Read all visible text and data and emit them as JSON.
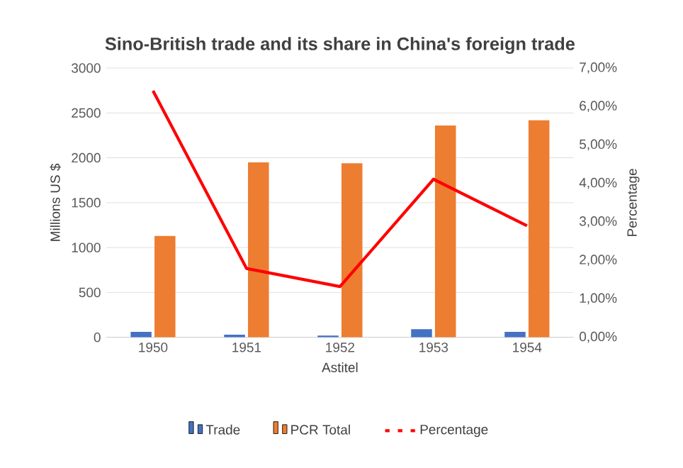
{
  "chart_data": {
    "type": "bar",
    "title": "Sino-British trade and its share in China's foreign trade",
    "xlabel": "Astitel",
    "ylabel": "Millions US $",
    "y2label": "Percentage",
    "categories": [
      "1950",
      "1951",
      "1952",
      "1953",
      "1954"
    ],
    "series": [
      {
        "name": "Trade",
        "color": "#4472c4",
        "values": [
          60,
          30,
          20,
          90,
          60
        ]
      },
      {
        "name": "PCR Total",
        "color": "#ed7d31",
        "values": [
          1130,
          1950,
          1940,
          2360,
          2420
        ]
      },
      {
        "name": "Percentage",
        "color": "#ff0000",
        "type": "line",
        "axis": "y2",
        "values": [
          6.41,
          1.79,
          1.32,
          4.11,
          2.9
        ]
      }
    ],
    "ylim": [
      0,
      3000
    ],
    "yticks": [
      0,
      500,
      1000,
      1500,
      2000,
      2500,
      3000
    ],
    "y2lim": [
      0,
      7
    ],
    "y2ticks": [
      {
        "value": 0,
        "label": "0,00%"
      },
      {
        "value": 1,
        "label": "1,00%"
      },
      {
        "value": 2,
        "label": "2,00%"
      },
      {
        "value": 3,
        "label": "3,00%"
      },
      {
        "value": 4,
        "label": "4,00%"
      },
      {
        "value": 5,
        "label": "5,00%"
      },
      {
        "value": 6,
        "label": "6,00%"
      },
      {
        "value": 7,
        "label": "7,00%"
      }
    ],
    "grid": "y",
    "legend": "bottom",
    "marker": "none"
  }
}
